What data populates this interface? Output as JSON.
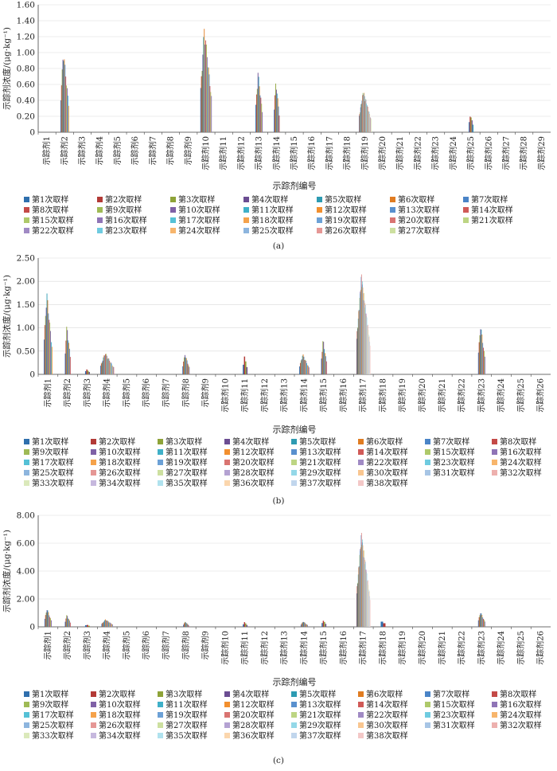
{
  "chart_data": [
    {
      "type": "bar",
      "panel": "(a)",
      "ylabel": "示踪剂浓度/(μg·kg⁻¹)",
      "xlabel": "示踪剂编号",
      "ylim": [
        0,
        1.6
      ],
      "yticks": [
        "0",
        "0.20",
        "0.40",
        "0.60",
        "0.80",
        "1.00",
        "1.20",
        "1.40",
        "1.60"
      ],
      "categories": [
        "示踪剂1",
        "示踪剂2",
        "示踪剂3",
        "示踪剂4",
        "示踪剂5",
        "示踪剂6",
        "示踪剂7",
        "示踪剂8",
        "示踪剂9",
        "示踪剂10",
        "示踪剂11",
        "示踪剂12",
        "示踪剂13",
        "示踪剂14",
        "示踪剂15",
        "示踪剂16",
        "示踪剂17",
        "示踪剂18",
        "示踪剂19",
        "示踪剂20",
        "示踪剂21",
        "示踪剂22",
        "示踪剂23",
        "示踪剂24",
        "示踪剂25",
        "示踪剂26",
        "示踪剂27",
        "示踪剂28",
        "示踪剂29"
      ],
      "legend": [
        "第1次取样",
        "第2次取样",
        "第3次取样",
        "第4次取样",
        "第5次取样",
        "第6次取样",
        "第7次取样",
        "第8次取样",
        "第9次取样",
        "第10次取样",
        "第11次取样",
        "第12次取样",
        "第13次取样",
        "第14次取样",
        "第15次取样",
        "第16次取样",
        "第17次取样",
        "第18次取样",
        "第19次取样",
        "第20次取样",
        "第21次取样",
        "第22次取样",
        "第23次取样",
        "第24次取样",
        "第25次取样",
        "第26次取样",
        "第27次取样"
      ],
      "legend_columns": 7,
      "peaks": [
        0,
        1.07,
        0,
        0,
        0,
        0,
        0,
        0,
        0,
        1.37,
        0,
        0,
        0.78,
        0.67,
        0,
        0,
        0,
        0,
        0.54,
        0,
        0,
        0,
        0,
        0,
        0.24,
        0,
        0,
        0,
        0
      ],
      "active_samples": [
        0,
        12,
        0,
        0,
        0,
        0,
        0,
        0,
        0,
        16,
        0,
        0,
        10,
        8,
        0,
        0,
        0,
        0,
        27,
        0,
        0,
        0,
        0,
        0,
        5,
        0,
        0,
        0,
        0
      ]
    },
    {
      "type": "bar",
      "panel": "(b)",
      "ylabel": "示踪剂浓度/(μg·kg⁻¹)",
      "xlabel": "示踪剂编号",
      "ylim": [
        0,
        2.5
      ],
      "yticks": [
        "0",
        "0.50",
        "1.00",
        "1.50",
        "2.00",
        "2.50"
      ],
      "categories": [
        "示踪剂1",
        "示踪剂2",
        "示踪剂3",
        "示踪剂4",
        "示踪剂5",
        "示踪剂6",
        "示踪剂7",
        "示踪剂8",
        "示踪剂9",
        "示踪剂10",
        "示踪剂11",
        "示踪剂12",
        "示踪剂13",
        "示踪剂14",
        "示踪剂15",
        "示踪剂16",
        "示踪剂17",
        "示踪剂18",
        "示踪剂19",
        "示踪剂20",
        "示踪剂21",
        "示踪剂22",
        "示踪剂23",
        "示踪剂24",
        "示踪剂25",
        "示踪剂26"
      ],
      "legend": [
        "第1次取样",
        "第2次取样",
        "第3次取样",
        "第4次取样",
        "第5次取样",
        "第6次取样",
        "第7次取样",
        "第8次取样",
        "第9次取样",
        "第10次取样",
        "第11次取样",
        "第12次取样",
        "第13次取样",
        "第14次取样",
        "第15次取样",
        "第16次取样",
        "第17次取样",
        "第18次取样",
        "第19次取样",
        "第20次取样",
        "第21次取样",
        "第22次取样",
        "第23次取样",
        "第24次取样",
        "第25次取样",
        "第26次取样",
        "第27次取样",
        "第28次取样",
        "第29次取样",
        "第30次取样",
        "第31次取样",
        "第32次取样",
        "第33次取样",
        "第34次取样",
        "第35次取样",
        "第36次取样",
        "第37次取样",
        "第38次取样"
      ],
      "legend_columns": 8,
      "peaks": [
        1.82,
        1.1,
        0.12,
        0.48,
        0,
        0,
        0,
        0.45,
        0,
        0,
        0.4,
        0,
        0,
        0.45,
        0.78,
        0,
        2.2,
        0,
        0,
        0,
        0,
        0,
        1.1,
        0,
        0,
        0
      ],
      "active_samples": [
        12,
        8,
        4,
        20,
        0,
        0,
        0,
        10,
        0,
        0,
        4,
        0,
        0,
        14,
        8,
        0,
        38,
        0,
        0,
        0,
        0,
        0,
        10,
        0,
        0,
        0
      ]
    },
    {
      "type": "bar",
      "panel": "(c)",
      "ylabel": "示踪剂浓度/(μg·kg⁻¹)",
      "xlabel": "示踪剂编号",
      "ylim": [
        0,
        8
      ],
      "yticks": [
        "0",
        "2.00",
        "4.00",
        "6.00",
        "8.00"
      ],
      "categories": [
        "示踪剂1",
        "示踪剂2",
        "示踪剂3",
        "示踪剂4",
        "示踪剂5",
        "示踪剂6",
        "示踪剂7",
        "示踪剂8",
        "示踪剂9",
        "示踪剂10",
        "示踪剂11",
        "示踪剂12",
        "示踪剂13",
        "示踪剂14",
        "示踪剂15",
        "示踪剂16",
        "示踪剂17",
        "示踪剂18",
        "示踪剂19",
        "示踪剂20",
        "示踪剂21",
        "示踪剂22",
        "示踪剂23",
        "示踪剂24",
        "示踪剂25",
        "示踪剂26"
      ],
      "legend": [
        "第1次取样",
        "第2次取样",
        "第3次取样",
        "第4次取样",
        "第5次取样",
        "第6次取样",
        "第7次取样",
        "第8次取样",
        "第9次取样",
        "第10次取样",
        "第11次取样",
        "第12次取样",
        "第13次取样",
        "第14次取样",
        "第15次取样",
        "第16次取样",
        "第17次取样",
        "第18次取样",
        "第19次取样",
        "第20次取样",
        "第21次取样",
        "第22次取样",
        "第23次取样",
        "第24次取样",
        "第25次取样",
        "第26次取样",
        "第27次取样",
        "第28次取样",
        "第29次取样",
        "第30次取样",
        "第31次取样",
        "第32次取样",
        "第33次取样",
        "第34次取样",
        "第35次取样",
        "第36次取样",
        "第37次取样",
        "第38次取样"
      ],
      "legend_columns": 8,
      "peaks": [
        1.35,
        0.9,
        0.18,
        0.55,
        0,
        0,
        0,
        0.38,
        0,
        0,
        0.35,
        0,
        0,
        0.4,
        0.5,
        0,
        6.9,
        0.5,
        0,
        0,
        0,
        0,
        1.1,
        0,
        0,
        0
      ],
      "active_samples": [
        10,
        8,
        3,
        16,
        0,
        0,
        0,
        8,
        0,
        0,
        4,
        0,
        0,
        10,
        4,
        0,
        38,
        2,
        0,
        0,
        0,
        0,
        10,
        0,
        0,
        0
      ]
    }
  ],
  "colors": [
    "#2f6fad",
    "#b33a36",
    "#8ea338",
    "#6b4d92",
    "#2d9bb2",
    "#e07c21",
    "#4a84c7",
    "#c44a47",
    "#9fba55",
    "#7f61a6",
    "#3fb0c8",
    "#f28f2e",
    "#5990ce",
    "#d05a57",
    "#aec96a",
    "#8f74b6",
    "#55c1d6",
    "#f5a24b",
    "#6ca1d6",
    "#d97471",
    "#bdd583",
    "#a08ac4",
    "#6fcbe0",
    "#f7b56c",
    "#8db5de",
    "#e59795",
    "#cde0a0",
    "#b4a2d2",
    "#94d8e8",
    "#f9c690",
    "#a7c5e5",
    "#edb0ae",
    "#dbe9bb",
    "#c6b8de",
    "#b0e2ee",
    "#fbd6ad",
    "#c1d6ed",
    "#f3c8c7"
  ]
}
